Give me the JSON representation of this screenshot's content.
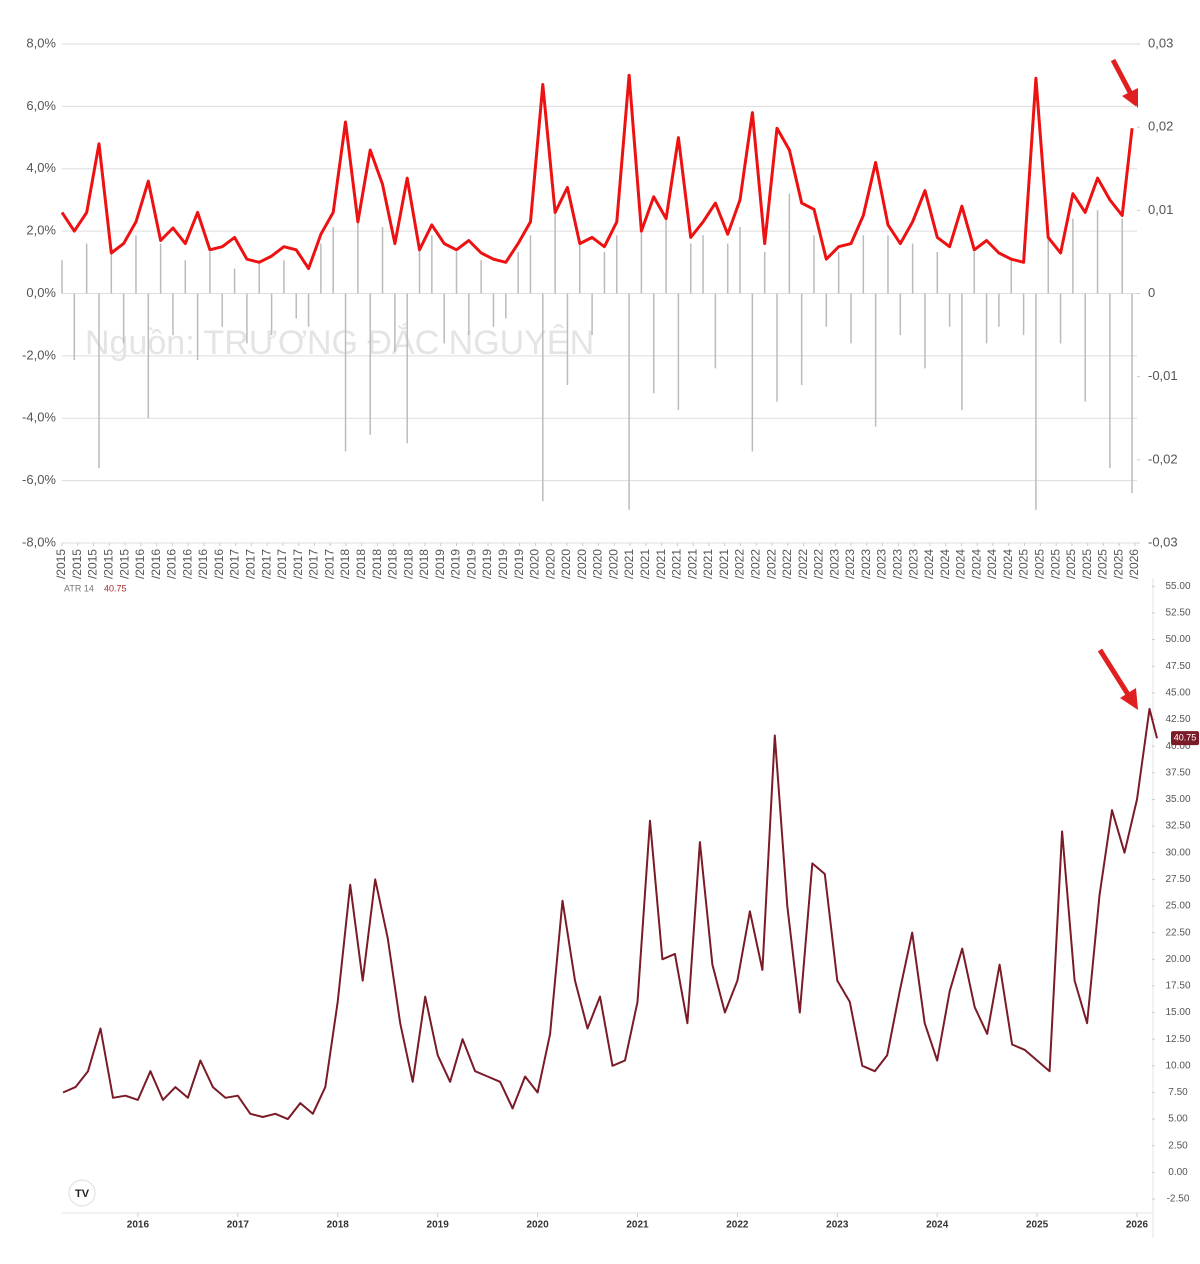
{
  "chart_data": [
    {
      "type": "line",
      "watermark": "Nguồn: TRƯƠNG ĐẮC NGUYÊN",
      "x": [
        2015.25,
        2015.375,
        2015.5,
        2015.625,
        2015.75,
        2015.875,
        2016,
        2016.125,
        2016.25,
        2016.375,
        2016.5,
        2016.625,
        2016.75,
        2016.875,
        2017,
        2017.125,
        2017.25,
        2017.375,
        2017.5,
        2017.625,
        2017.75,
        2017.875,
        2018,
        2018.125,
        2018.25,
        2018.375,
        2018.5,
        2018.625,
        2018.75,
        2018.875,
        2019,
        2019.125,
        2019.25,
        2019.375,
        2019.5,
        2019.625,
        2019.75,
        2019.875,
        2020,
        2020.125,
        2020.25,
        2020.375,
        2020.5,
        2020.625,
        2020.75,
        2020.875,
        2021,
        2021.125,
        2021.25,
        2021.375,
        2021.5,
        2021.625,
        2021.75,
        2021.875,
        2022,
        2022.125,
        2022.25,
        2022.375,
        2022.5,
        2022.625,
        2022.75,
        2022.875,
        2023,
        2023.125,
        2023.25,
        2023.375,
        2023.5,
        2023.625,
        2023.75,
        2023.875,
        2024,
        2024.125,
        2024.25,
        2024.375,
        2024.5,
        2024.625,
        2024.75,
        2024.875,
        2025,
        2025.125,
        2025.25,
        2025.375,
        2025.5,
        2025.625,
        2025.75,
        2025.875,
        2026,
        2026.1
      ],
      "series": [
        {
          "color": "#bbbbbb",
          "style": "bar",
          "axis": "y2",
          "values": [
            0.004,
            -0.008,
            0.006,
            -0.021,
            0.005,
            -0.006,
            0.007,
            -0.015,
            0.006,
            -0.005,
            0.004,
            -0.008,
            0.005,
            -0.004,
            0.003,
            -0.006,
            0.004,
            -0.005,
            0.004,
            -0.003,
            -0.004,
            0.006,
            0.008,
            -0.019,
            0.009,
            -0.017,
            0.008,
            -0.007,
            -0.018,
            0.006,
            0.007,
            -0.006,
            0.005,
            -0.005,
            0.004,
            -0.004,
            -0.003,
            0.005,
            0.007,
            -0.025,
            0.01,
            -0.011,
            0.006,
            -0.005,
            0.005,
            0.007,
            -0.026,
            0.008,
            -0.012,
            0.009,
            -0.014,
            0.006,
            0.007,
            -0.009,
            0.006,
            0.008,
            -0.019,
            0.005,
            -0.013,
            0.012,
            -0.011,
            0.007,
            -0.004,
            0.005,
            -0.006,
            0.007,
            -0.016,
            0.007,
            -0.005,
            0.006,
            -0.009,
            0.005,
            -0.004,
            -0.014,
            0.005,
            -0.006,
            -0.004,
            0.004,
            -0.005,
            -0.026,
            0.008,
            -0.006,
            0.009,
            -0.013,
            0.01,
            -0.021,
            0.009,
            -0.024
          ]
        },
        {
          "color": "#ee1111",
          "style": "line",
          "values": [
            2.6,
            2.0,
            2.6,
            4.8,
            1.3,
            1.6,
            2.3,
            3.6,
            1.7,
            2.1,
            1.6,
            2.6,
            1.4,
            1.5,
            1.8,
            1.1,
            1.0,
            1.2,
            1.5,
            1.4,
            0.8,
            1.9,
            2.6,
            5.5,
            2.3,
            4.6,
            3.5,
            1.6,
            3.7,
            1.4,
            2.2,
            1.6,
            1.4,
            1.7,
            1.3,
            1.1,
            1.0,
            1.6,
            2.3,
            6.7,
            2.6,
            3.4,
            1.6,
            1.8,
            1.5,
            2.3,
            7.0,
            2.0,
            3.1,
            2.4,
            5.0,
            1.8,
            2.3,
            2.9,
            1.9,
            3.0,
            5.8,
            1.6,
            5.3,
            4.6,
            2.9,
            2.7,
            1.1,
            1.5,
            1.6,
            2.5,
            4.2,
            2.2,
            1.6,
            2.3,
            3.3,
            1.8,
            1.5,
            2.8,
            1.4,
            1.7,
            1.3,
            1.1,
            1.0,
            6.9,
            1.8,
            1.3,
            3.2,
            2.6,
            3.7,
            3.0,
            2.5,
            5.3
          ]
        }
      ],
      "xlim": [
        2015.25,
        2026.15
      ],
      "xticks": [
        {
          "value": 2015.25,
          "label": "/2015"
        },
        {
          "value": 2015.41,
          "label": "/2015"
        },
        {
          "value": 2015.57,
          "label": "/2015"
        },
        {
          "value": 2015.73,
          "label": "/2015"
        },
        {
          "value": 2015.89,
          "label": "/2015"
        },
        {
          "value": 2016.05,
          "label": "/2016"
        },
        {
          "value": 2016.21,
          "label": "/2016"
        },
        {
          "value": 2016.37,
          "label": "/2016"
        },
        {
          "value": 2016.53,
          "label": "/2016"
        },
        {
          "value": 2016.69,
          "label": "/2016"
        },
        {
          "value": 2016.85,
          "label": "/2016"
        },
        {
          "value": 2017.01,
          "label": "/2017"
        },
        {
          "value": 2017.17,
          "label": "/2017"
        },
        {
          "value": 2017.33,
          "label": "/2017"
        },
        {
          "value": 2017.49,
          "label": "/2017"
        },
        {
          "value": 2017.65,
          "label": "/2017"
        },
        {
          "value": 2017.81,
          "label": "/2017"
        },
        {
          "value": 2017.97,
          "label": "/2017"
        },
        {
          "value": 2018.13,
          "label": "/2018"
        },
        {
          "value": 2018.29,
          "label": "/2018"
        },
        {
          "value": 2018.45,
          "label": "/2018"
        },
        {
          "value": 2018.61,
          "label": "/2018"
        },
        {
          "value": 2018.77,
          "label": "/2018"
        },
        {
          "value": 2018.93,
          "label": "/2018"
        },
        {
          "value": 2019.09,
          "label": "/2019"
        },
        {
          "value": 2019.25,
          "label": "/2019"
        },
        {
          "value": 2019.41,
          "label": "/2019"
        },
        {
          "value": 2019.57,
          "label": "/2019"
        },
        {
          "value": 2019.73,
          "label": "/2019"
        },
        {
          "value": 2019.89,
          "label": "/2019"
        },
        {
          "value": 2020.05,
          "label": "/2020"
        },
        {
          "value": 2020.21,
          "label": "/2020"
        },
        {
          "value": 2020.37,
          "label": "/2020"
        },
        {
          "value": 2020.53,
          "label": "/2020"
        },
        {
          "value": 2020.69,
          "label": "/2020"
        },
        {
          "value": 2020.85,
          "label": "/2020"
        },
        {
          "value": 2021.01,
          "label": "/2021"
        },
        {
          "value": 2021.17,
          "label": "/2021"
        },
        {
          "value": 2021.33,
          "label": "/2021"
        },
        {
          "value": 2021.49,
          "label": "/2021"
        },
        {
          "value": 2021.65,
          "label": "/2021"
        },
        {
          "value": 2021.81,
          "label": "/2021"
        },
        {
          "value": 2021.97,
          "label": "/2021"
        },
        {
          "value": 2022.13,
          "label": "/2022"
        },
        {
          "value": 2022.29,
          "label": "/2022"
        },
        {
          "value": 2022.45,
          "label": "/2022"
        },
        {
          "value": 2022.61,
          "label": "/2022"
        },
        {
          "value": 2022.77,
          "label": "/2022"
        },
        {
          "value": 2022.93,
          "label": "/2022"
        },
        {
          "value": 2023.09,
          "label": "/2023"
        },
        {
          "value": 2023.25,
          "label": "/2023"
        },
        {
          "value": 2023.41,
          "label": "/2023"
        },
        {
          "value": 2023.57,
          "label": "/2023"
        },
        {
          "value": 2023.73,
          "label": "/2023"
        },
        {
          "value": 2023.89,
          "label": "/2023"
        },
        {
          "value": 2024.05,
          "label": "/2024"
        },
        {
          "value": 2024.21,
          "label": "/2024"
        },
        {
          "value": 2024.37,
          "label": "/2024"
        },
        {
          "value": 2024.53,
          "label": "/2024"
        },
        {
          "value": 2024.69,
          "label": "/2024"
        },
        {
          "value": 2024.85,
          "label": "/2024"
        },
        {
          "value": 2025.01,
          "label": "/2025"
        },
        {
          "value": 2025.17,
          "label": "/2025"
        },
        {
          "value": 2025.33,
          "label": "/2025"
        },
        {
          "value": 2025.49,
          "label": "/2025"
        },
        {
          "value": 2025.65,
          "label": "/2025"
        },
        {
          "value": 2025.81,
          "label": "/2025"
        },
        {
          "value": 2025.97,
          "label": "/2025"
        },
        {
          "value": 2026.13,
          "label": "/2026"
        }
      ],
      "ylim": [
        -8,
        8
      ],
      "yticks": [
        {
          "value": 8,
          "label": "8,0%"
        },
        {
          "value": 6,
          "label": "6,0%"
        },
        {
          "value": 4,
          "label": "4,0%"
        },
        {
          "value": 2,
          "label": "2,0%"
        },
        {
          "value": 0,
          "label": "0,0%"
        },
        {
          "value": -2,
          "label": "-2,0%"
        },
        {
          "value": -4,
          "label": "-4,0%"
        },
        {
          "value": -6,
          "label": "-6,0%"
        },
        {
          "value": -8,
          "label": "-8,0%"
        }
      ],
      "y2lim": [
        -0.03,
        0.03
      ],
      "y2ticks": [
        {
          "value": 0.03,
          "label": "0,03"
        },
        {
          "value": 0.02,
          "label": "0,02"
        },
        {
          "value": 0.01,
          "label": "0,01"
        },
        0,
        {
          "value": -0.01,
          "label": "-0,01"
        },
        {
          "value": -0.02,
          "label": "-0,02"
        },
        {
          "value": -0.03,
          "label": "-0,03"
        }
      ],
      "grid": true
    },
    {
      "type": "line",
      "x": [
        2015.25,
        2015.375,
        2015.5,
        2015.625,
        2015.75,
        2015.875,
        2016,
        2016.125,
        2016.25,
        2016.375,
        2016.5,
        2016.625,
        2016.75,
        2016.875,
        2017,
        2017.125,
        2017.25,
        2017.375,
        2017.5,
        2017.625,
        2017.75,
        2017.875,
        2018,
        2018.125,
        2018.25,
        2018.375,
        2018.5,
        2018.625,
        2018.75,
        2018.875,
        2019,
        2019.125,
        2019.25,
        2019.375,
        2019.5,
        2019.625,
        2019.75,
        2019.875,
        2020,
        2020.125,
        2020.25,
        2020.375,
        2020.5,
        2020.625,
        2020.75,
        2020.875,
        2021,
        2021.125,
        2021.25,
        2021.375,
        2021.5,
        2021.625,
        2021.75,
        2021.875,
        2022,
        2022.125,
        2022.25,
        2022.375,
        2022.5,
        2022.625,
        2022.75,
        2022.875,
        2023,
        2023.125,
        2023.25,
        2023.375,
        2023.5,
        2023.625,
        2023.75,
        2023.875,
        2024,
        2024.125,
        2024.25,
        2024.375,
        2024.5,
        2024.625,
        2024.75,
        2024.875,
        2025,
        2025.125,
        2025.25,
        2025.375,
        2025.5,
        2025.625,
        2025.75,
        2025.875,
        2026,
        2026.125,
        2026.2
      ],
      "series": [
        {
          "name": "ATR 14",
          "color": "#7a1b27",
          "style": "line",
          "values": [
            7.5,
            8.0,
            9.5,
            13.5,
            7.0,
            7.2,
            6.8,
            9.5,
            6.8,
            8.0,
            7.0,
            10.5,
            8.0,
            7.0,
            7.2,
            5.5,
            5.2,
            5.5,
            5.0,
            6.5,
            5.5,
            8.0,
            16.0,
            27.0,
            18.0,
            27.5,
            22.0,
            14.0,
            8.5,
            16.5,
            11.0,
            8.5,
            12.5,
            9.5,
            9.0,
            8.5,
            6.0,
            9.0,
            7.5,
            13.0,
            25.5,
            18.0,
            13.5,
            16.5,
            10.0,
            10.5,
            16.0,
            33.0,
            20.0,
            20.5,
            14.0,
            31.0,
            19.5,
            15.0,
            18.0,
            24.5,
            19.0,
            41.0,
            25.0,
            15.0,
            29.0,
            28.0,
            18.0,
            16.0,
            10.0,
            9.5,
            11.0,
            17.0,
            22.5,
            14.0,
            10.5,
            17.0,
            21.0,
            15.5,
            13.0,
            19.5,
            12.0,
            11.5,
            10.5,
            9.5,
            32.0,
            18.0,
            14.0,
            26.0,
            34.0,
            30.0,
            35.0,
            43.5,
            40.75
          ]
        }
      ],
      "xlim": [
        2015.24,
        2026.15
      ],
      "xticks": [
        2016,
        2017,
        2018,
        2019,
        2020,
        2021,
        2022,
        2023,
        2024,
        2025,
        2026
      ],
      "ylim": [
        -4,
        55.5
      ],
      "yticks": [
        {
          "value": 55,
          "label": "55.00"
        },
        {
          "value": 52.5,
          "label": "52.50"
        },
        {
          "value": 50,
          "label": "50.00"
        },
        {
          "value": 47.5,
          "label": "47.50"
        },
        {
          "value": 45,
          "label": "45.00"
        },
        {
          "value": 42.5,
          "label": "42.50"
        },
        {
          "value": 40,
          "label": "40.00"
        },
        {
          "value": 37.5,
          "label": "37.50"
        },
        {
          "value": 35,
          "label": "35.00"
        },
        {
          "value": 32.5,
          "label": "32.50"
        },
        {
          "value": 30,
          "label": "30.00"
        },
        {
          "value": 27.5,
          "label": "27.50"
        },
        {
          "value": 25,
          "label": "25.00"
        },
        {
          "value": 22.5,
          "label": "22.50"
        },
        {
          "value": 20,
          "label": "20.00"
        },
        {
          "value": 17.5,
          "label": "17.50"
        },
        {
          "value": 15,
          "label": "15.00"
        },
        {
          "value": 12.5,
          "label": "12.50"
        },
        {
          "value": 10,
          "label": "10.00"
        },
        {
          "value": 7.5,
          "label": "7.50"
        },
        {
          "value": 5,
          "label": "5.00"
        },
        {
          "value": 2.5,
          "label": "2.50"
        },
        {
          "value": 0,
          "label": "0.00"
        },
        {
          "value": -2.5,
          "label": "-2.50"
        }
      ],
      "grid": false
    }
  ]
}
